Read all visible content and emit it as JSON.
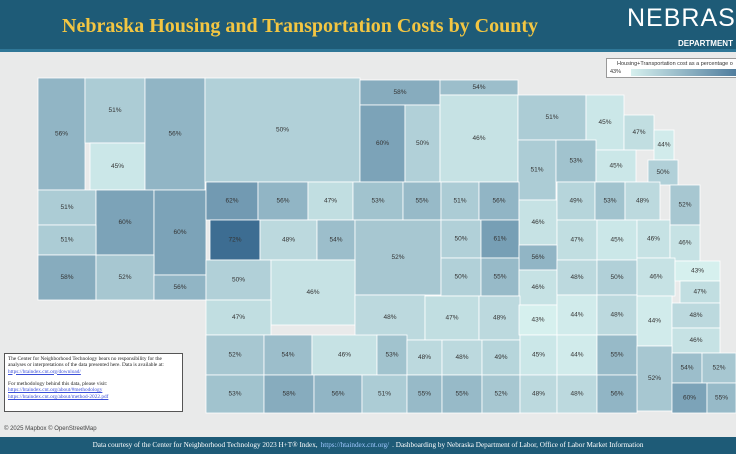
{
  "header": {
    "title": "Nebraska Housing and Transportation Costs by County",
    "logo": "NEBRAS",
    "logo_sub": "DEPARTMENT"
  },
  "legend": {
    "title": "Housing+Transportation cost as a percentage o",
    "min": {
      "value": 43,
      "label": "43%"
    },
    "color_low": "#d6f0ee",
    "color_high": "#3d6d92"
  },
  "counties": {
    "values": [
      56,
      51,
      45,
      56,
      50,
      58,
      60,
      50,
      54,
      46,
      51,
      45,
      47,
      44,
      51,
      53,
      45,
      50,
      52,
      51,
      60,
      60,
      51,
      58,
      52,
      56,
      62,
      56,
      47,
      53,
      55,
      51,
      56,
      46,
      49,
      53,
      48,
      72,
      48,
      54,
      52,
      50,
      61,
      47,
      45,
      46,
      46,
      56,
      50,
      46,
      50,
      55,
      46,
      48,
      50,
      46,
      43,
      47,
      47,
      48,
      47,
      48,
      43,
      44,
      48,
      44,
      48,
      46,
      52,
      54,
      46,
      53,
      48,
      48,
      49,
      45,
      44,
      55,
      52,
      54,
      52,
      53,
      58,
      56,
      51,
      55,
      55,
      52,
      48,
      48,
      56,
      60,
      55
    ],
    "value_labels": [
      "56%",
      "51%",
      "45%",
      "56%",
      "50%",
      "58%",
      "60%",
      "50%",
      "54%",
      "46%",
      "51%",
      "45%",
      "47%",
      "44%",
      "51%",
      "53%",
      "45%",
      "50%",
      "52%",
      "51%",
      "60%",
      "60%",
      "51%",
      "58%",
      "52%",
      "56%",
      "62%",
      "56%",
      "47%",
      "53%",
      "55%",
      "51%",
      "56%",
      "46%",
      "49%",
      "53%",
      "48%",
      "72%",
      "48%",
      "54%",
      "52%",
      "50%",
      "61%",
      "47%",
      "45%",
      "46%",
      "46%",
      "56%",
      "50%",
      "46%",
      "50%",
      "55%",
      "46%",
      "48%",
      "50%",
      "46%",
      "43%",
      "47%",
      "47%",
      "48%",
      "47%",
      "48%",
      "43%",
      "44%",
      "48%",
      "44%",
      "48%",
      "46%",
      "52%",
      "54%",
      "46%",
      "53%",
      "48%",
      "48%",
      "49%",
      "45%",
      "44%",
      "55%",
      "52%",
      "54%",
      "52%",
      "53%",
      "58%",
      "56%",
      "51%",
      "55%",
      "55%",
      "52%",
      "48%",
      "48%",
      "56%",
      "60%",
      "55%"
    ]
  },
  "disclaimer": {
    "text": "The Center for Neighborhood Technology bears no responsibility for the analyses or interpretations of the data presented here. Data is available at:",
    "link": "https://htaindex.cnt.org/download/",
    "method_text": "For methodology behind this data, please visit:",
    "method_links": [
      "https://htaindex.cnt.org/about/#methodology",
      "https://htaindex.cnt.org/about/method-2022.pdf"
    ]
  },
  "attribution": "© 2025 Mapbox © OpenStreetMap",
  "footer": {
    "text_before": "Data courtesy of the Center for Neighborhood Technology 2023 H+T® Index,",
    "link": "https://htaindex.cnt.org/",
    "text_after": ". Dashboarding by Nebraska Department of Labor, Office of Labor Market Information"
  }
}
